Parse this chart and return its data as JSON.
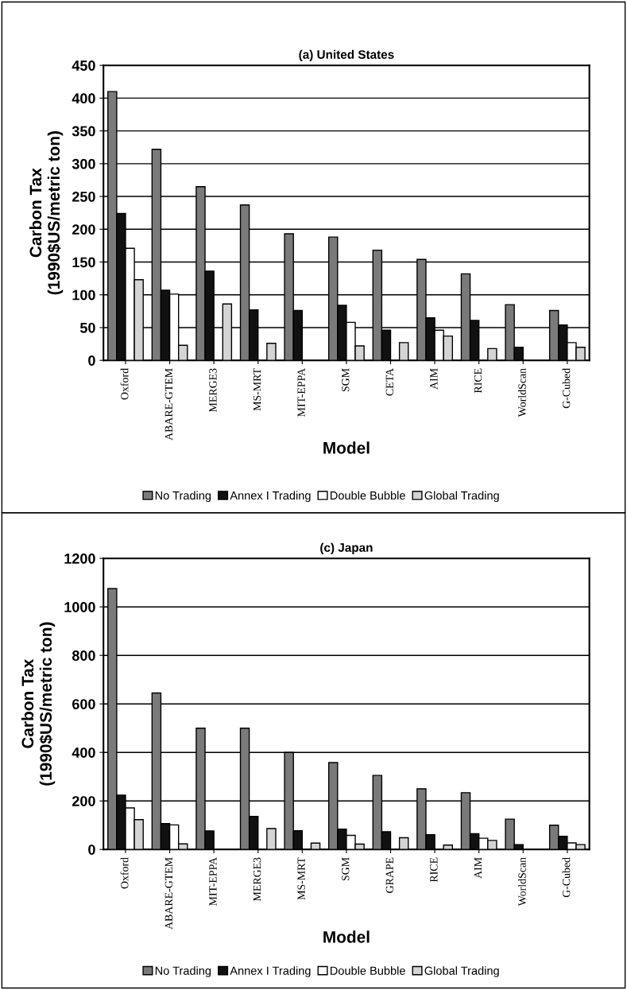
{
  "chart_data": [
    {
      "type": "bar",
      "title": "(a) United States",
      "xlabel": "Model",
      "ylabel": "Carbon Tax\n(1990$US/metric ton)",
      "categories": [
        "Oxford",
        "ABARE-GTEM",
        "MERGE3",
        "MS-MRT",
        "MIT-EPPA",
        "SGM",
        "CETA",
        "AIM",
        "RICE",
        "WorldScan",
        "G-Cubed"
      ],
      "series": [
        {
          "name": "No Trading",
          "color": "#7a7a7a",
          "values": [
            410,
            322,
            265,
            237,
            193,
            188,
            168,
            154,
            132,
            85,
            76
          ]
        },
        {
          "name": "Annex I Trading",
          "color": "#111111",
          "values": [
            224,
            107,
            136,
            77,
            76,
            84,
            46,
            65,
            61,
            20,
            54
          ]
        },
        {
          "name": "Double Bubble",
          "color": "#ffffff",
          "values": [
            171,
            101,
            null,
            null,
            null,
            58,
            null,
            46,
            null,
            null,
            27
          ]
        },
        {
          "name": "Global Trading",
          "color": "#d4d4d4",
          "values": [
            123,
            23,
            86,
            26,
            null,
            22,
            27,
            37,
            18,
            null,
            20
          ]
        }
      ],
      "ylim": [
        0,
        450
      ],
      "yticks": [
        0,
        50,
        100,
        150,
        200,
        250,
        300,
        350,
        400,
        450
      ],
      "grid": "y",
      "legend": "bottom"
    },
    {
      "type": "bar",
      "title": "(c) Japan",
      "xlabel": "Model",
      "ylabel": "Carbon Tax\n(1990$US/metric ton)",
      "categories": [
        "Oxford",
        "ABARE-GTEM",
        "MIT-EPPA",
        "MERGE3",
        "MS-MRT",
        "SGM",
        "GRAPE",
        "RICE",
        "AIM",
        "WorldScan",
        "G-Cubed"
      ],
      "series": [
        {
          "name": "No Trading",
          "color": "#7a7a7a",
          "values": [
            1075,
            645,
            500,
            500,
            400,
            358,
            305,
            250,
            234,
            125,
            100
          ]
        },
        {
          "name": "Annex I Trading",
          "color": "#111111",
          "values": [
            224,
            107,
            76,
            136,
            77,
            84,
            73,
            61,
            65,
            20,
            54
          ]
        },
        {
          "name": "Double Bubble",
          "color": "#ffffff",
          "values": [
            171,
            101,
            null,
            null,
            null,
            58,
            null,
            null,
            46,
            null,
            27
          ]
        },
        {
          "name": "Global Trading",
          "color": "#d4d4d4",
          "values": [
            123,
            23,
            null,
            86,
            26,
            22,
            48,
            18,
            37,
            null,
            20
          ]
        }
      ],
      "ylim": [
        0,
        1200
      ],
      "yticks": [
        0,
        200,
        400,
        600,
        800,
        1000,
        1200
      ],
      "grid": "y",
      "legend": "bottom"
    }
  ]
}
